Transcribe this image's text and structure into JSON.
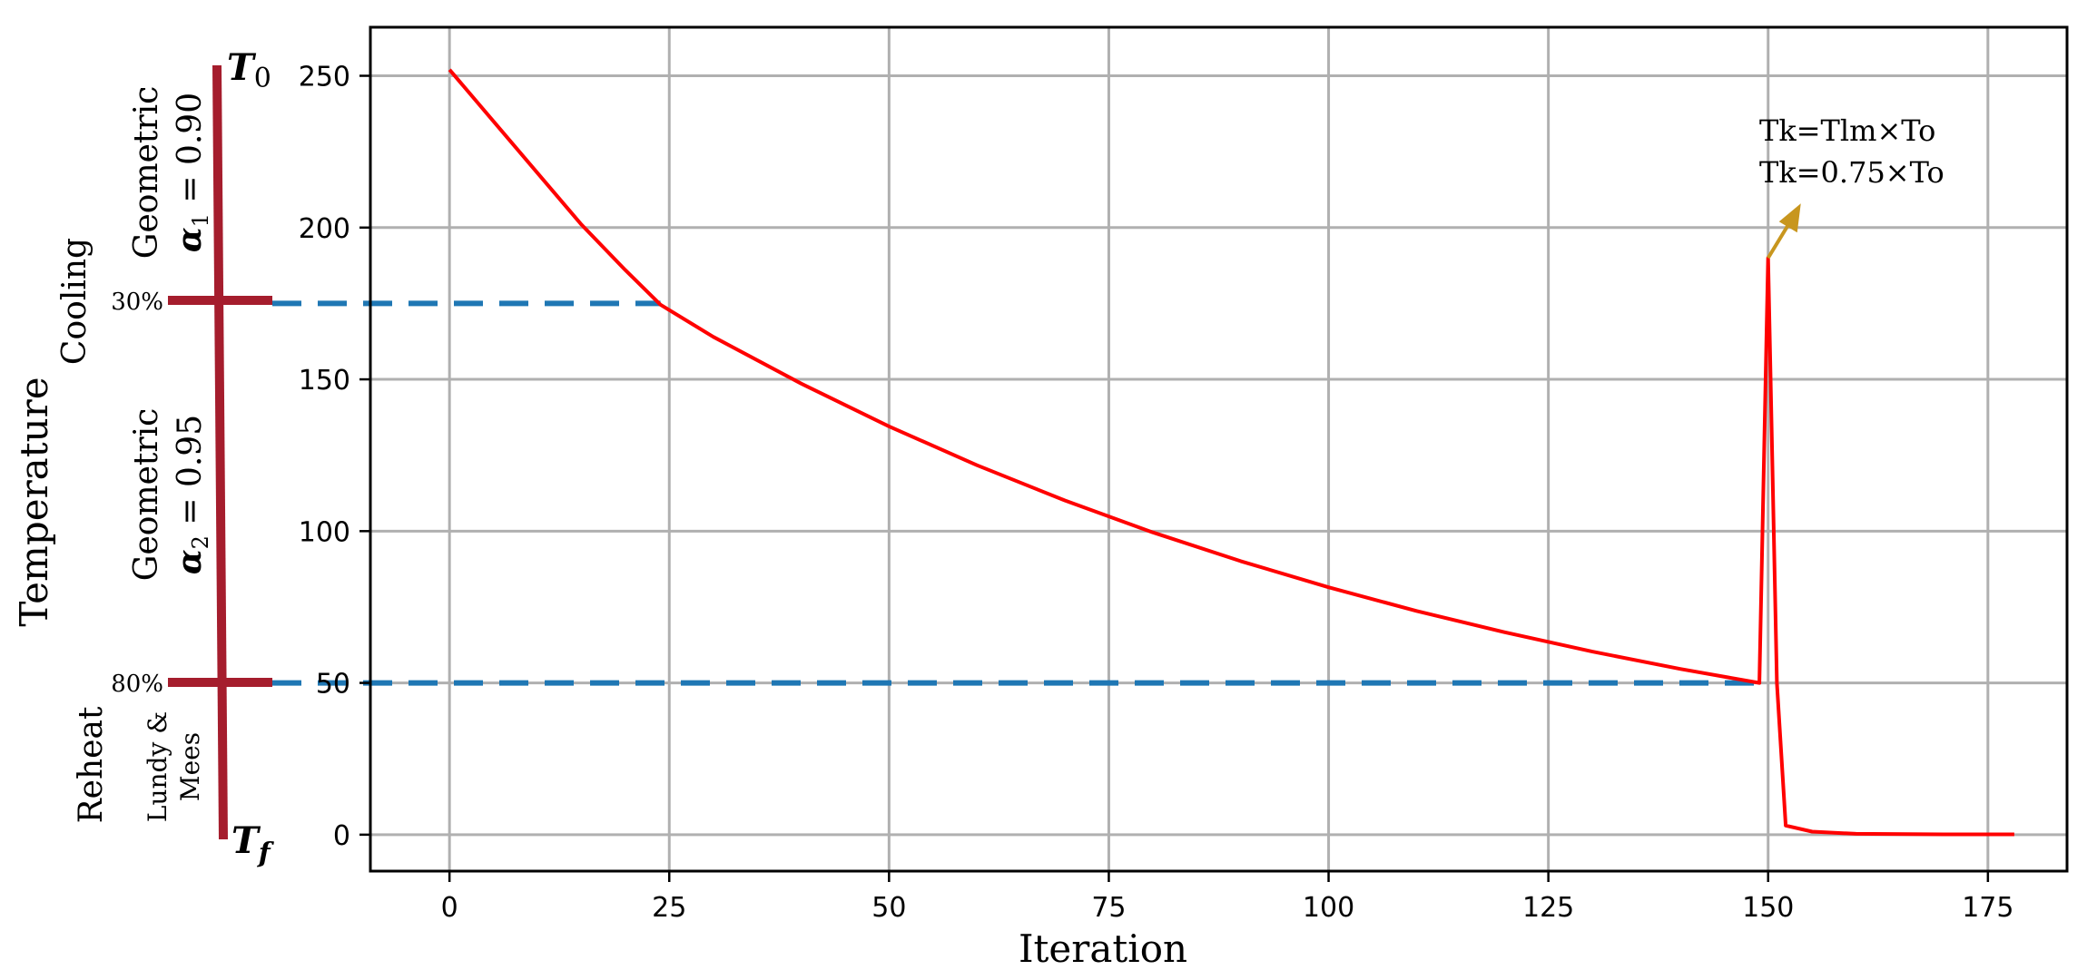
{
  "chart_data": {
    "type": "line",
    "xlabel": "Iteration",
    "ylabel": "Temperature",
    "xlim": [
      -9,
      184
    ],
    "ylim": [
      -12,
      266
    ],
    "grid": true,
    "x_ticks": [
      "0",
      "25",
      "50",
      "75",
      "100",
      "125",
      "150",
      "175"
    ],
    "x_tick_values": [
      0,
      25,
      50,
      75,
      100,
      125,
      150,
      175
    ],
    "y_ticks": [
      "0",
      "50",
      "100",
      "150",
      "200",
      "250"
    ],
    "y_tick_values": [
      0,
      50,
      100,
      150,
      200,
      250
    ],
    "series": [
      {
        "color": "#ff0000",
        "x": [
          0,
          5,
          10,
          15,
          20,
          24,
          30,
          40,
          50,
          60,
          70,
          80,
          90,
          100,
          110,
          120,
          130,
          140,
          149,
          150,
          151,
          152,
          155,
          160,
          170,
          178
        ],
        "y": [
          252,
          235,
          218,
          201,
          186,
          174.6,
          164,
          148.6,
          134.5,
          121.7,
          110.1,
          99.6,
          90.1,
          81.5,
          73.7,
          66.7,
          60.3,
          54.6,
          50,
          190,
          50,
          3,
          1,
          0.3,
          0.1,
          0.1
        ]
      }
    ],
    "reference_lines": [
      {
        "y": 175,
        "x_end": 24,
        "style": "dashed",
        "color": "#1f77b4"
      },
      {
        "y": 50,
        "x_end": 149,
        "style": "dashed",
        "color": "#1f77b4"
      }
    ],
    "annotations": {
      "arrow_label_line1": "Tk=Tlm×To",
      "arrow_label_line2": "Tk=0.75×To",
      "arrow_color": "#c8961e",
      "arrow_from": {
        "x": 150,
        "y": 190
      }
    }
  },
  "side_panel": {
    "top_label": "T",
    "top_sub": "0",
    "bottom_label": "T",
    "bottom_sub": "f",
    "pct_top": "30%",
    "pct_bottom": "80%",
    "cooling_label": "Cooling",
    "cooling_color": "#4b1fb4",
    "reheat_label": "Reheat",
    "reheat_color": "#b86a1a",
    "geo1_line1": "Geometric",
    "geo1_alpha": "α",
    "geo1_sub": "1",
    "geo1_value": " = 0.90",
    "geo2_line1": "Geometric",
    "geo2_alpha": "α",
    "geo2_sub": "2",
    "geo2_value": " = 0.95",
    "lundy_line1": "Lundy &",
    "lundy_line2": "Mees",
    "bar_color": "#a51d2d"
  }
}
